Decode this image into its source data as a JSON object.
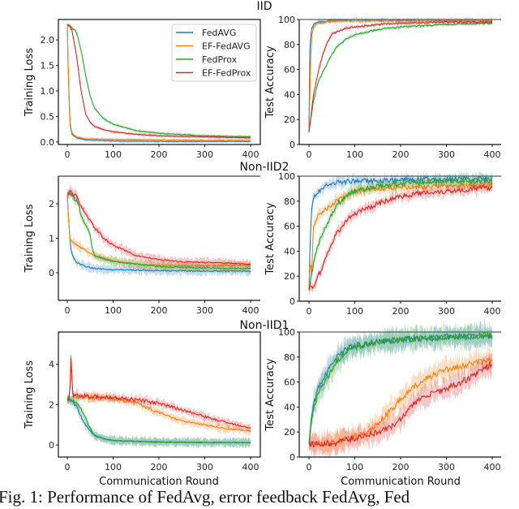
{
  "caption": "Fig. 1: Performance of FedAvg, error feedback FedAvg, Fed",
  "colors": {
    "FedAVG": "#1f77b4",
    "EF-FedAVG": "#ff7f0e",
    "FedProx": "#2ca02c",
    "EF-FedProx": "#d62728"
  },
  "legend": [
    "FedAVG",
    "EF-FedAVG",
    "FedProx",
    "EF-FedProx"
  ],
  "chart_data": [
    {
      "type": "line",
      "row_title": "IID",
      "title": "",
      "xlabel": "",
      "ylabel": "Training Loss",
      "xlim": [
        0,
        400
      ],
      "ylim": [
        -0.05,
        2.4
      ],
      "xticks": [
        0,
        100,
        200,
        300,
        400
      ],
      "yticks": [
        0.0,
        0.5,
        1.0,
        1.5,
        2.0
      ],
      "ytick_labels": [
        "0.0",
        "0.5",
        "1.0",
        "1.5",
        "2.0"
      ],
      "legend": "top-right",
      "series": [
        {
          "name": "FedAVG",
          "x": [
            0,
            3,
            6,
            10,
            20,
            40,
            100,
            200,
            300,
            400
          ],
          "y": [
            2.3,
            1.0,
            0.35,
            0.15,
            0.08,
            0.04,
            0.02,
            0.01,
            0.01,
            0.01
          ]
        },
        {
          "name": "EF-FedAVG",
          "x": [
            0,
            3,
            6,
            10,
            20,
            40,
            100,
            200,
            300,
            400
          ],
          "y": [
            2.3,
            1.1,
            0.4,
            0.18,
            0.1,
            0.06,
            0.05,
            0.04,
            0.03,
            0.03
          ]
        },
        {
          "name": "FedProx",
          "x": [
            0,
            10,
            20,
            30,
            40,
            50,
            60,
            80,
            100,
            150,
            200,
            300,
            400
          ],
          "y": [
            2.3,
            2.25,
            2.15,
            1.8,
            1.3,
            0.9,
            0.65,
            0.45,
            0.35,
            0.22,
            0.17,
            0.12,
            0.1
          ]
        },
        {
          "name": "EF-FedProx",
          "x": [
            0,
            10,
            20,
            30,
            40,
            50,
            60,
            80,
            100,
            150,
            200,
            300,
            400
          ],
          "y": [
            2.3,
            2.2,
            1.7,
            1.0,
            0.55,
            0.38,
            0.3,
            0.24,
            0.2,
            0.15,
            0.12,
            0.1,
            0.08
          ]
        }
      ]
    },
    {
      "type": "line",
      "row_title": "",
      "title": "",
      "xlabel": "",
      "ylabel": "Test Accuracy",
      "xlim": [
        0,
        400
      ],
      "ylim": [
        0,
        100
      ],
      "xticks": [
        0,
        100,
        200,
        300,
        400
      ],
      "yticks": [
        0,
        20,
        40,
        60,
        80,
        100
      ],
      "ytick_labels": [
        "0",
        "20",
        "40",
        "60",
        "80",
        "100"
      ],
      "series": [
        {
          "name": "FedAVG",
          "x": [
            0,
            2,
            5,
            10,
            20,
            50,
            100,
            200,
            400
          ],
          "y": [
            10,
            75,
            92,
            96,
            98,
            99,
            99.5,
            99.5,
            99.5
          ]
        },
        {
          "name": "EF-FedAVG",
          "x": [
            0,
            2,
            5,
            10,
            20,
            50,
            100,
            200,
            400
          ],
          "y": [
            10,
            40,
            85,
            94,
            97,
            98.5,
            99,
            99,
            99
          ]
        },
        {
          "name": "FedProx",
          "x": [
            0,
            10,
            20,
            30,
            40,
            50,
            60,
            80,
            100,
            150,
            200,
            300,
            400
          ],
          "y": [
            10,
            35,
            50,
            58,
            65,
            72,
            78,
            84,
            88,
            92,
            94,
            96,
            97
          ]
        },
        {
          "name": "EF-FedProx",
          "x": [
            0,
            10,
            20,
            30,
            40,
            50,
            60,
            80,
            100,
            150,
            200,
            300,
            400
          ],
          "y": [
            10,
            40,
            58,
            72,
            82,
            88,
            90,
            93,
            94,
            96,
            97,
            98,
            98
          ]
        }
      ]
    },
    {
      "type": "line",
      "row_title": "Non-IID2",
      "title": "",
      "xlabel": "",
      "ylabel": "Training Loss",
      "xlim": [
        0,
        400
      ],
      "ylim": [
        -0.8,
        2.8
      ],
      "xticks": [
        0,
        100,
        200,
        300,
        400
      ],
      "yticks": [
        0,
        1,
        2
      ],
      "ytick_labels": [
        "0",
        "1",
        "2"
      ],
      "series": [
        {
          "name": "FedAVG",
          "x": [
            0,
            3,
            6,
            10,
            20,
            40,
            60,
            100,
            200,
            300,
            400
          ],
          "y": [
            2.3,
            1.5,
            0.9,
            0.55,
            0.3,
            0.18,
            0.12,
            0.09,
            0.06,
            0.05,
            0.05
          ]
        },
        {
          "name": "EF-FedAVG",
          "x": [
            0,
            3,
            6,
            10,
            20,
            40,
            60,
            100,
            150,
            200,
            300,
            400
          ],
          "y": [
            2.3,
            1.5,
            1.0,
            0.9,
            0.8,
            0.65,
            0.5,
            0.35,
            0.25,
            0.22,
            0.2,
            0.22
          ]
        },
        {
          "name": "FedProx",
          "x": [
            0,
            10,
            20,
            30,
            40,
            50,
            55,
            60,
            80,
            100,
            150,
            200,
            300,
            400
          ],
          "y": [
            2.3,
            2.25,
            2.1,
            1.7,
            1.4,
            1.1,
            0.65,
            0.5,
            0.4,
            0.33,
            0.25,
            0.18,
            0.14,
            0.12
          ]
        },
        {
          "name": "EF-FedProx",
          "x": [
            0,
            5,
            20,
            40,
            60,
            80,
            100,
            150,
            200,
            250,
            300,
            350,
            400
          ],
          "y": [
            2.3,
            2.4,
            2.2,
            1.7,
            1.3,
            1.0,
            0.8,
            0.5,
            0.38,
            0.32,
            0.3,
            0.28,
            0.25
          ]
        }
      ]
    },
    {
      "type": "line",
      "row_title": "",
      "title": "",
      "xlabel": "",
      "ylabel": "Test Accuracy",
      "xlim": [
        0,
        400
      ],
      "ylim": [
        0,
        100
      ],
      "xticks": [
        0,
        100,
        200,
        300,
        400
      ],
      "yticks": [
        0,
        20,
        40,
        60,
        80,
        100
      ],
      "ytick_labels": [
        "0",
        "20",
        "40",
        "60",
        "80",
        "100"
      ],
      "series": [
        {
          "name": "FedAVG",
          "x": [
            0,
            2,
            5,
            10,
            20,
            40,
            60,
            100,
            200,
            300,
            400
          ],
          "y": [
            10,
            40,
            70,
            82,
            88,
            93,
            95,
            96,
            97,
            97.5,
            98
          ]
        },
        {
          "name": "EF-FedAVG",
          "x": [
            0,
            3,
            6,
            10,
            20,
            40,
            60,
            100,
            150,
            200,
            300,
            400
          ],
          "y": [
            10,
            35,
            20,
            60,
            68,
            74,
            80,
            88,
            90,
            91,
            92,
            93
          ]
        },
        {
          "name": "FedProx",
          "x": [
            0,
            10,
            20,
            30,
            40,
            50,
            60,
            80,
            100,
            150,
            200,
            300,
            400
          ],
          "y": [
            10,
            30,
            45,
            55,
            62,
            70,
            76,
            84,
            88,
            92,
            94,
            96,
            96
          ]
        },
        {
          "name": "EF-FedProx",
          "x": [
            0,
            10,
            20,
            30,
            40,
            50,
            60,
            80,
            100,
            150,
            200,
            250,
            300,
            400
          ],
          "y": [
            10,
            12,
            20,
            28,
            38,
            46,
            54,
            64,
            70,
            78,
            84,
            87,
            88,
            91
          ]
        }
      ]
    },
    {
      "type": "line",
      "row_title": "Non-IID1",
      "title": "",
      "xlabel": "Communication Round",
      "ylabel": "Training Loss",
      "xlim": [
        0,
        400
      ],
      "ylim": [
        -0.6,
        5.6
      ],
      "xticks": [
        0,
        100,
        200,
        300,
        400
      ],
      "yticks": [
        0,
        2,
        4
      ],
      "ytick_labels": [
        "0",
        "2",
        "4"
      ],
      "series": [
        {
          "name": "FedAVG",
          "x": [
            0,
            10,
            20,
            30,
            40,
            50,
            60,
            80,
            100,
            150,
            200,
            300,
            400
          ],
          "y": [
            2.3,
            2.2,
            1.9,
            1.4,
            1.0,
            0.7,
            0.45,
            0.3,
            0.22,
            0.18,
            0.15,
            0.12,
            0.12
          ]
        },
        {
          "name": "EF-FedAVG",
          "x": [
            0,
            5,
            8,
            12,
            20,
            50,
            100,
            150,
            200,
            250,
            300,
            350,
            400
          ],
          "y": [
            2.3,
            2.4,
            4.5,
            2.5,
            2.4,
            2.35,
            2.3,
            2.1,
            1.6,
            1.2,
            1.0,
            0.8,
            0.7
          ]
        },
        {
          "name": "FedProx",
          "x": [
            0,
            10,
            20,
            30,
            40,
            50,
            60,
            80,
            100,
            150,
            200,
            300,
            400
          ],
          "y": [
            2.3,
            2.25,
            2.1,
            1.8,
            1.3,
            0.8,
            0.5,
            0.3,
            0.22,
            0.17,
            0.14,
            0.12,
            0.12
          ]
        },
        {
          "name": "EF-FedProx",
          "x": [
            0,
            5,
            8,
            12,
            20,
            50,
            100,
            150,
            200,
            250,
            300,
            350,
            400
          ],
          "y": [
            2.3,
            2.4,
            4.2,
            2.5,
            2.45,
            2.4,
            2.35,
            2.25,
            2.05,
            1.75,
            1.4,
            1.1,
            0.85
          ]
        }
      ]
    },
    {
      "type": "line",
      "row_title": "",
      "title": "",
      "xlabel": "Communication Round",
      "ylabel": "Test Accuracy",
      "xlim": [
        0,
        400
      ],
      "ylim": [
        0,
        100
      ],
      "xticks": [
        0,
        100,
        200,
        300,
        400
      ],
      "yticks": [
        0,
        20,
        40,
        60,
        80,
        100
      ],
      "ytick_labels": [
        "0",
        "20",
        "40",
        "60",
        "80",
        "100"
      ],
      "series": [
        {
          "name": "FedAVG",
          "x": [
            0,
            5,
            10,
            20,
            30,
            40,
            50,
            60,
            80,
            100,
            150,
            200,
            300,
            400
          ],
          "y": [
            10,
            30,
            42,
            55,
            62,
            68,
            75,
            80,
            86,
            89,
            92,
            94,
            96,
            97
          ]
        },
        {
          "name": "EF-FedAVG",
          "x": [
            0,
            50,
            100,
            130,
            150,
            180,
            200,
            230,
            260,
            300,
            350,
            400
          ],
          "y": [
            10,
            11,
            16,
            20,
            27,
            38,
            46,
            56,
            64,
            70,
            74,
            78
          ]
        },
        {
          "name": "FedProx",
          "x": [
            0,
            5,
            10,
            20,
            30,
            40,
            50,
            60,
            80,
            100,
            150,
            200,
            300,
            400
          ],
          "y": [
            10,
            28,
            40,
            50,
            58,
            64,
            70,
            76,
            84,
            88,
            92,
            94,
            96,
            97
          ]
        },
        {
          "name": "EF-FedProx",
          "x": [
            0,
            50,
            100,
            150,
            180,
            200,
            220,
            250,
            280,
            300,
            350,
            400
          ],
          "y": [
            10,
            11,
            15,
            20,
            24,
            30,
            40,
            48,
            52,
            55,
            63,
            75
          ]
        }
      ]
    }
  ]
}
